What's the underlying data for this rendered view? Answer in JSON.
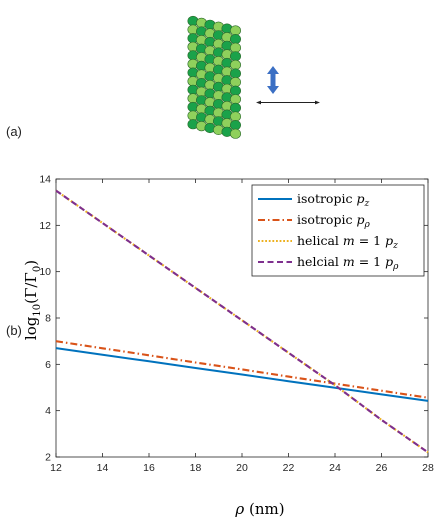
{
  "panels": {
    "a_label": "(a)",
    "b_label": "(b)"
  },
  "colors": {
    "sphere_dark": "#1aa24a",
    "sphere_light": "#8fd05c",
    "sphere_stroke": "#2a6b2a",
    "arrow_blue": "#3b6fc4",
    "axes": "#262626"
  },
  "chart_data": {
    "type": "line",
    "title": "",
    "xlabel": "ρ (nm)",
    "ylabel": "log10(Γ/Γ0)",
    "xlim": [
      12,
      28
    ],
    "ylim": [
      2,
      14
    ],
    "xticks": [
      12,
      14,
      16,
      18,
      20,
      22,
      24,
      26,
      28
    ],
    "yticks": [
      2,
      4,
      6,
      8,
      10,
      12,
      14
    ],
    "grid": false,
    "legend_position": "top-right",
    "series": [
      {
        "name": "isotropic p_z",
        "color": "#0072BD",
        "style": "solid",
        "x": [
          12,
          14,
          16,
          18,
          20,
          22,
          24,
          26,
          28
        ],
        "y": [
          6.7,
          6.41,
          6.13,
          5.84,
          5.56,
          5.27,
          4.99,
          4.7,
          4.42
        ]
      },
      {
        "name": "isotropic p_ρ",
        "color": "#D95319",
        "style": "dashdot",
        "x": [
          12,
          14,
          16,
          18,
          20,
          22,
          24,
          26,
          28
        ],
        "y": [
          7.0,
          6.69,
          6.39,
          6.08,
          5.78,
          5.47,
          5.17,
          4.86,
          4.56
        ]
      },
      {
        "name": "helical m = 1 p_z",
        "color": "#EDB120",
        "style": "dotted",
        "x": [
          12,
          14,
          16,
          18,
          20,
          22,
          24,
          26,
          28
        ],
        "y": [
          13.5,
          12.1,
          10.7,
          9.3,
          7.9,
          6.5,
          5.1,
          3.6,
          2.2
        ]
      },
      {
        "name": "helcial m = 1 p_ρ",
        "color": "#7E2F8E",
        "style": "dashed",
        "x": [
          12,
          14,
          16,
          18,
          20,
          22,
          24,
          26,
          28
        ],
        "y": [
          13.5,
          12.1,
          10.7,
          9.3,
          7.9,
          6.5,
          5.1,
          3.6,
          2.2
        ]
      }
    ]
  }
}
